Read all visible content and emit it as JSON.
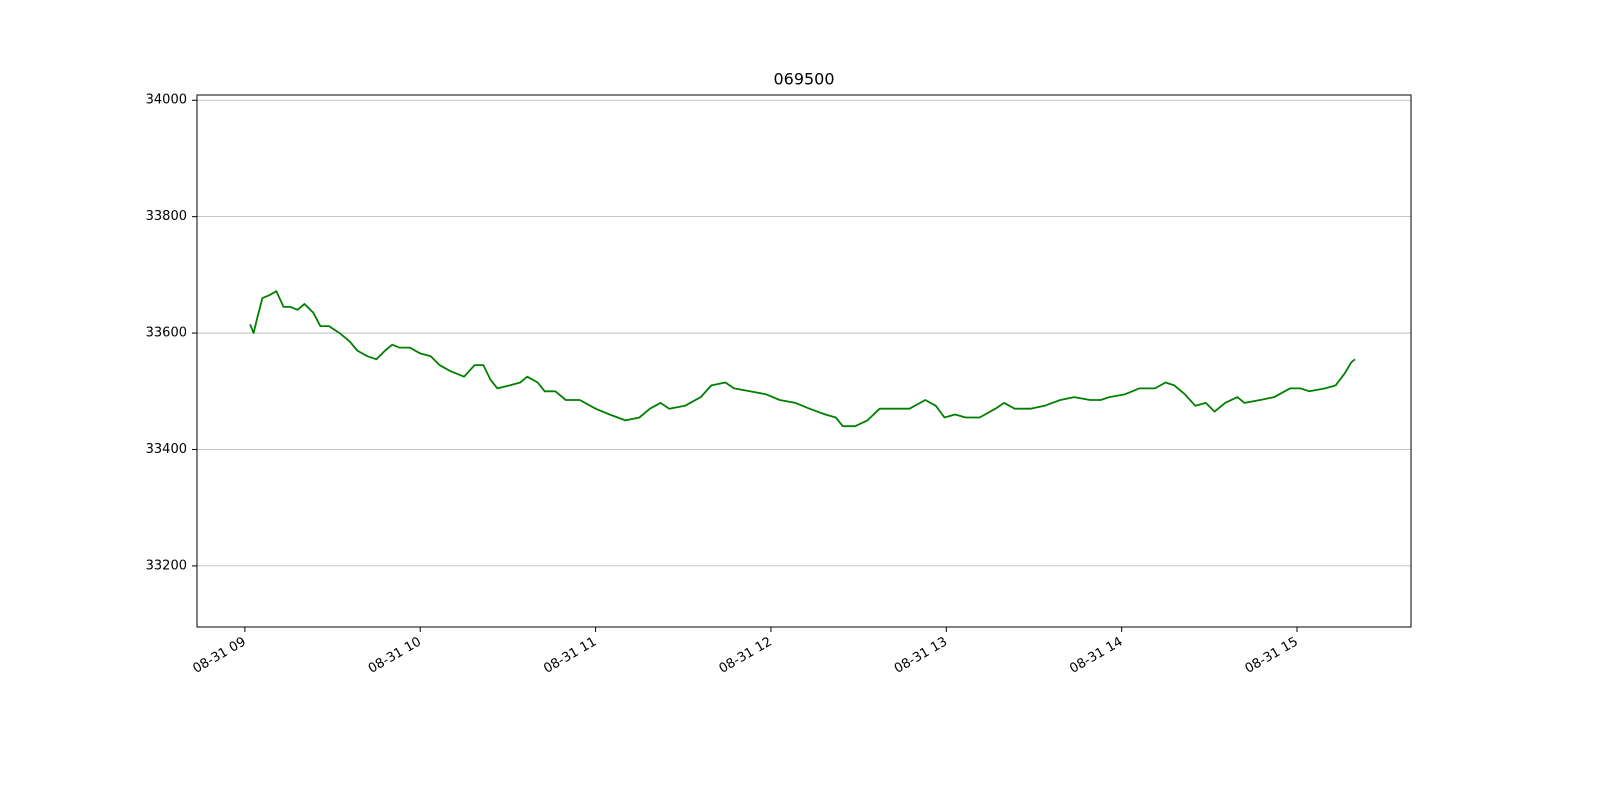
{
  "chart_data": {
    "type": "line",
    "title": "069500",
    "x": [
      9.03,
      9.05,
      9.07,
      9.1,
      9.14,
      9.18,
      9.22,
      9.26,
      9.3,
      9.34,
      9.39,
      9.43,
      9.48,
      9.54,
      9.6,
      9.64,
      9.7,
      9.75,
      9.8,
      9.84,
      9.88,
      9.94,
      10.0,
      10.06,
      10.11,
      10.17,
      10.25,
      10.31,
      10.36,
      10.4,
      10.44,
      10.51,
      10.57,
      10.61,
      10.67,
      10.71,
      10.77,
      10.83,
      10.91,
      11.0,
      11.08,
      11.17,
      11.25,
      11.31,
      11.37,
      11.42,
      11.51,
      11.6,
      11.66,
      11.74,
      11.79,
      11.88,
      11.97,
      12.05,
      12.14,
      12.22,
      12.31,
      12.37,
      12.41,
      12.48,
      12.55,
      12.62,
      12.7,
      12.79,
      12.88,
      12.94,
      12.99,
      13.05,
      13.11,
      13.19,
      13.28,
      13.33,
      13.39,
      13.48,
      13.56,
      13.65,
      13.73,
      13.82,
      13.88,
      13.93,
      14.02,
      14.1,
      14.19,
      14.25,
      14.3,
      14.36,
      14.42,
      14.48,
      14.53,
      14.59,
      14.66,
      14.7,
      14.79,
      14.87,
      14.96,
      15.02,
      15.07,
      15.16,
      15.22,
      15.27,
      15.31,
      15.33
    ],
    "series": [
      {
        "color": "#008000",
        "values": [
          33615,
          33600,
          33625,
          33660,
          33665,
          33672,
          33645,
          33645,
          33640,
          33650,
          33635,
          33612,
          33612,
          33600,
          33585,
          33570,
          33560,
          33555,
          33570,
          33580,
          33575,
          33575,
          33565,
          33560,
          33545,
          33535,
          33525,
          33545,
          33545,
          33520,
          33505,
          33510,
          33515,
          33525,
          33515,
          33500,
          33500,
          33485,
          33485,
          33470,
          33460,
          33450,
          33455,
          33470,
          33480,
          33470,
          33475,
          33490,
          33510,
          33515,
          33505,
          33500,
          33495,
          33485,
          33480,
          33470,
          33460,
          33455,
          33440,
          33440,
          33450,
          33470,
          33470,
          33470,
          33485,
          33475,
          33455,
          33460,
          33455,
          33455,
          33470,
          33480,
          33470,
          33470,
          33475,
          33485,
          33490,
          33485,
          33485,
          33490,
          33495,
          33505,
          33505,
          33515,
          33510,
          33495,
          33475,
          33480,
          33465,
          33480,
          33490,
          33480,
          33485,
          33490,
          33505,
          33505,
          33500,
          33505,
          33510,
          33530,
          33550,
          33555
        ]
      }
    ],
    "xlim": [
      8.727,
      15.65
    ],
    "xticks": [
      {
        "value": 9,
        "label": "08-31 09"
      },
      {
        "value": 10,
        "label": "08-31 10"
      },
      {
        "value": 11,
        "label": "08-31 11"
      },
      {
        "value": 12,
        "label": "08-31 12"
      },
      {
        "value": 13,
        "label": "08-31 13"
      },
      {
        "value": 14,
        "label": "08-31 14"
      },
      {
        "value": 15,
        "label": "08-31 15"
      }
    ],
    "ylim": [
      33095,
      34009
    ],
    "yticks": [
      33200,
      33400,
      33600,
      33800,
      34000
    ],
    "grid": true
  }
}
